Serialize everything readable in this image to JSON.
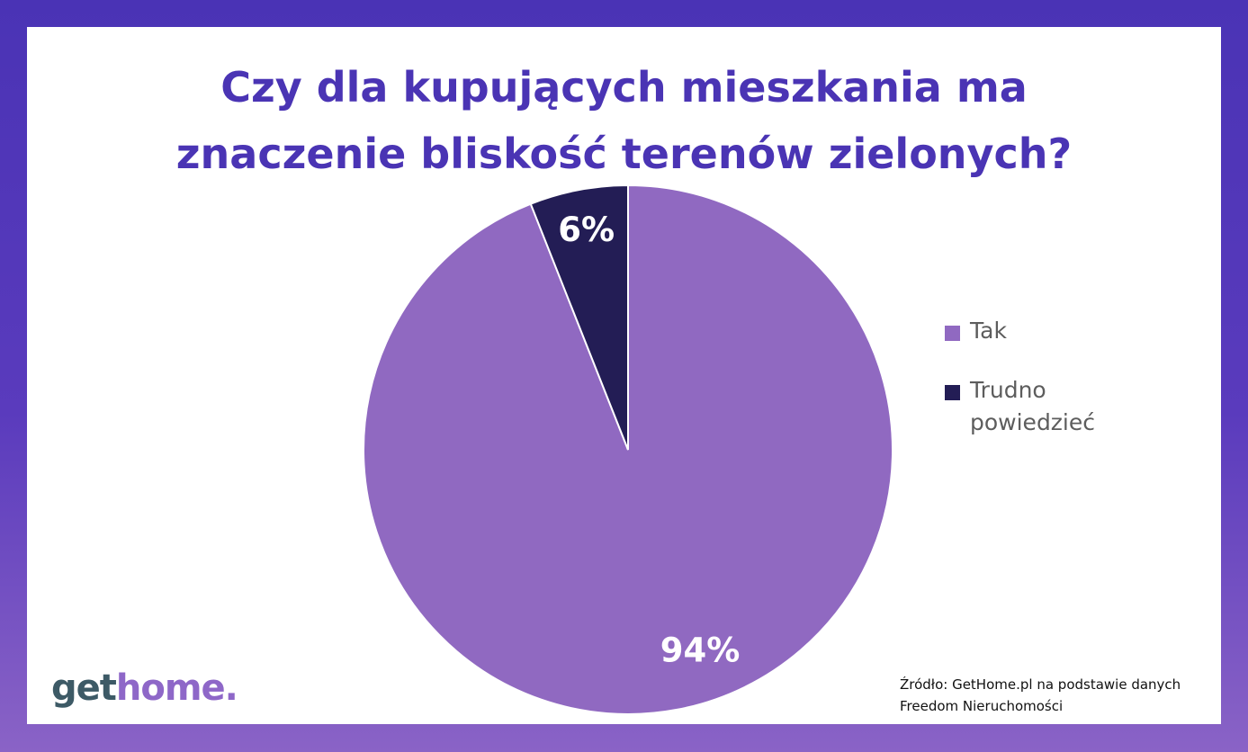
{
  "chart_data": {
    "type": "pie",
    "title": "Czy dla kupujących mieszkania ma znaczenie bliskość terenów zielonych?",
    "title_lines": [
      "Czy dla kupujących mieszkania ma",
      "znaczenie bliskość terenów zielonych?"
    ],
    "slices": [
      {
        "name": "Tak",
        "value": 94,
        "label": "94%",
        "color": "#9069c1"
      },
      {
        "name": "Trudno powiedzieć",
        "value": 6,
        "label": "6%",
        "color": "#231d55"
      }
    ],
    "legend": {
      "position": "right"
    }
  },
  "legend_items": [
    {
      "label": "Tak",
      "color": "#9069c1"
    },
    {
      "label": "Trudno powiedzieć",
      "color": "#231d55"
    }
  ],
  "logo": {
    "part1": "get",
    "part2": "home."
  },
  "source": {
    "line1": "Źródło: GetHome.pl na podstawie danych",
    "line2": "Freedom Nieruchomości"
  },
  "colors": {
    "title": "#4a34b4",
    "frame": "#4a33b5"
  }
}
